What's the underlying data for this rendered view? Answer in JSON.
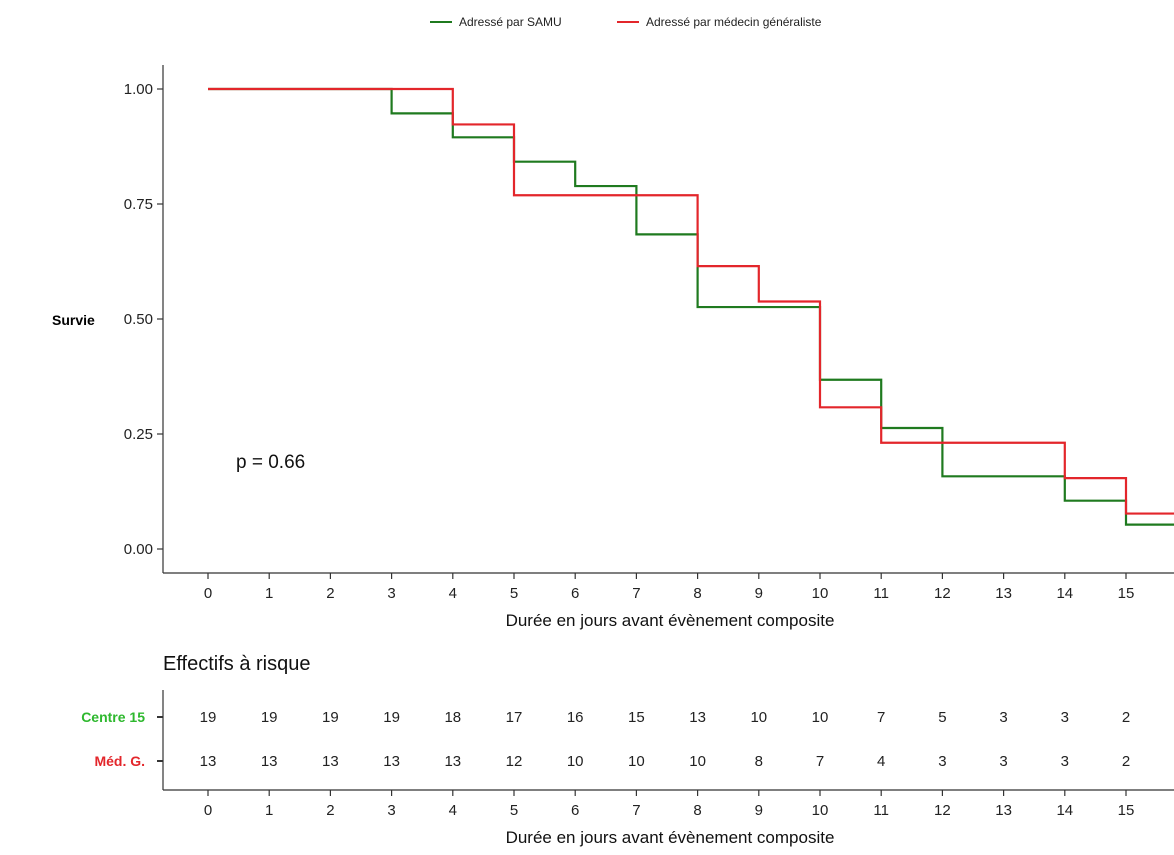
{
  "chart_data": {
    "type": "line",
    "subtype": "kaplan-meier",
    "legend_position": "top",
    "colors": {
      "samu": "#1f7a1f",
      "mg": "#e3262b"
    },
    "series": [
      {
        "name": "Adressé par SAMU",
        "color": "#1f7a1f",
        "steps": [
          [
            0,
            1.0
          ],
          [
            3,
            0.947
          ],
          [
            4,
            0.895
          ],
          [
            5,
            0.842
          ],
          [
            6,
            0.789
          ],
          [
            7,
            0.684
          ],
          [
            8,
            0.526
          ],
          [
            10,
            0.368
          ],
          [
            11,
            0.263
          ],
          [
            12,
            0.158
          ],
          [
            14,
            0.105
          ],
          [
            15,
            0.053
          ],
          [
            16,
            0.053
          ]
        ]
      },
      {
        "name": "Adressé par médecin généraliste",
        "color": "#e3262b",
        "steps": [
          [
            0,
            1.0
          ],
          [
            4,
            0.923
          ],
          [
            5,
            0.769
          ],
          [
            8,
            0.615
          ],
          [
            9,
            0.538
          ],
          [
            10,
            0.308
          ],
          [
            11,
            0.231
          ],
          [
            14,
            0.154
          ],
          [
            15,
            0.077
          ],
          [
            16,
            0.077
          ]
        ]
      }
    ],
    "xlabel": "Durée en jours avant évènement composite",
    "ylabel": "Survie",
    "xlim": [
      0,
      16
    ],
    "ylim": [
      0,
      1
    ],
    "x_ticks": [
      "0",
      "1",
      "2",
      "3",
      "4",
      "5",
      "6",
      "7",
      "8",
      "9",
      "10",
      "11",
      "12",
      "13",
      "14",
      "15"
    ],
    "y_ticks": [
      "0.00",
      "0.25",
      "0.50",
      "0.75",
      "1.00"
    ],
    "y_tick_values": [
      0,
      0.25,
      0.5,
      0.75,
      1.0
    ],
    "annotation": "p = 0.66",
    "risk_table": {
      "title": "Effectifs à risque",
      "xlabel": "Durée en jours avant évènement composite",
      "rows": [
        {
          "label": "Centre 15",
          "color": "#2eb82e",
          "values": [
            19,
            19,
            19,
            19,
            18,
            17,
            16,
            15,
            13,
            10,
            10,
            7,
            5,
            3,
            3,
            2
          ]
        },
        {
          "label": "Méd. G.",
          "color": "#e3262b",
          "values": [
            13,
            13,
            13,
            13,
            13,
            12,
            10,
            10,
            10,
            8,
            7,
            4,
            3,
            3,
            3,
            2
          ]
        }
      ]
    }
  }
}
